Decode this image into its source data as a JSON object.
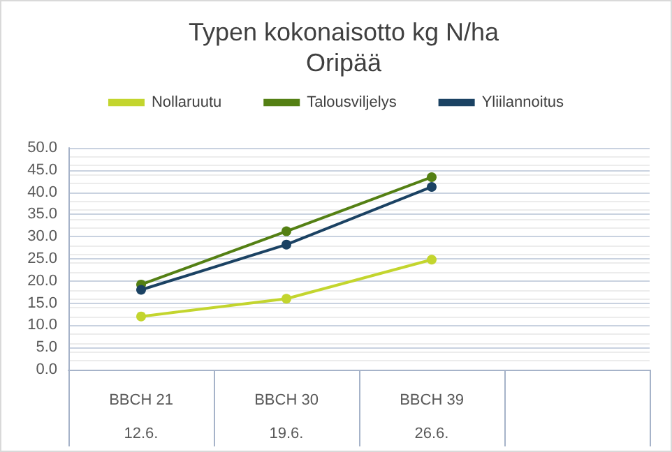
{
  "chart_data": {
    "type": "line",
    "title": "Typen kokonaisotto kg N/ha",
    "subtitle": "Oripää",
    "categories": [
      "BBCH 21\n12.6.",
      "BBCH 30\n19.6.",
      "BBCH 39\n26.6.",
      null
    ],
    "series": [
      {
        "name": "Nollaruutu",
        "color": "#c3d52e",
        "values": [
          12.0,
          16.0,
          24.8,
          null
        ]
      },
      {
        "name": "Talousviljelys",
        "color": "#548014",
        "values": [
          19.2,
          31.2,
          43.4,
          null
        ]
      },
      {
        "name": "Yliilannoitus",
        "color": "#1b4263",
        "values": [
          18.0,
          28.2,
          41.2,
          null
        ]
      }
    ],
    "ylim": [
      0,
      50
    ],
    "yticks": [
      {
        "value": 0,
        "label": "0.0"
      },
      {
        "value": 5,
        "label": "5.0"
      },
      {
        "value": 10,
        "label": "10.0"
      },
      {
        "value": 15,
        "label": "15.0"
      },
      {
        "value": 20,
        "label": "20.0"
      },
      {
        "value": 25,
        "label": "25.0"
      },
      {
        "value": 30,
        "label": "30.0"
      },
      {
        "value": 35,
        "label": "35.0"
      },
      {
        "value": 40,
        "label": "40.0"
      },
      {
        "value": 45,
        "label": "45.0"
      },
      {
        "value": 50,
        "label": "50.0"
      }
    ],
    "grid": true,
    "legend": "top",
    "marker": "circle",
    "line_style": "solid"
  }
}
